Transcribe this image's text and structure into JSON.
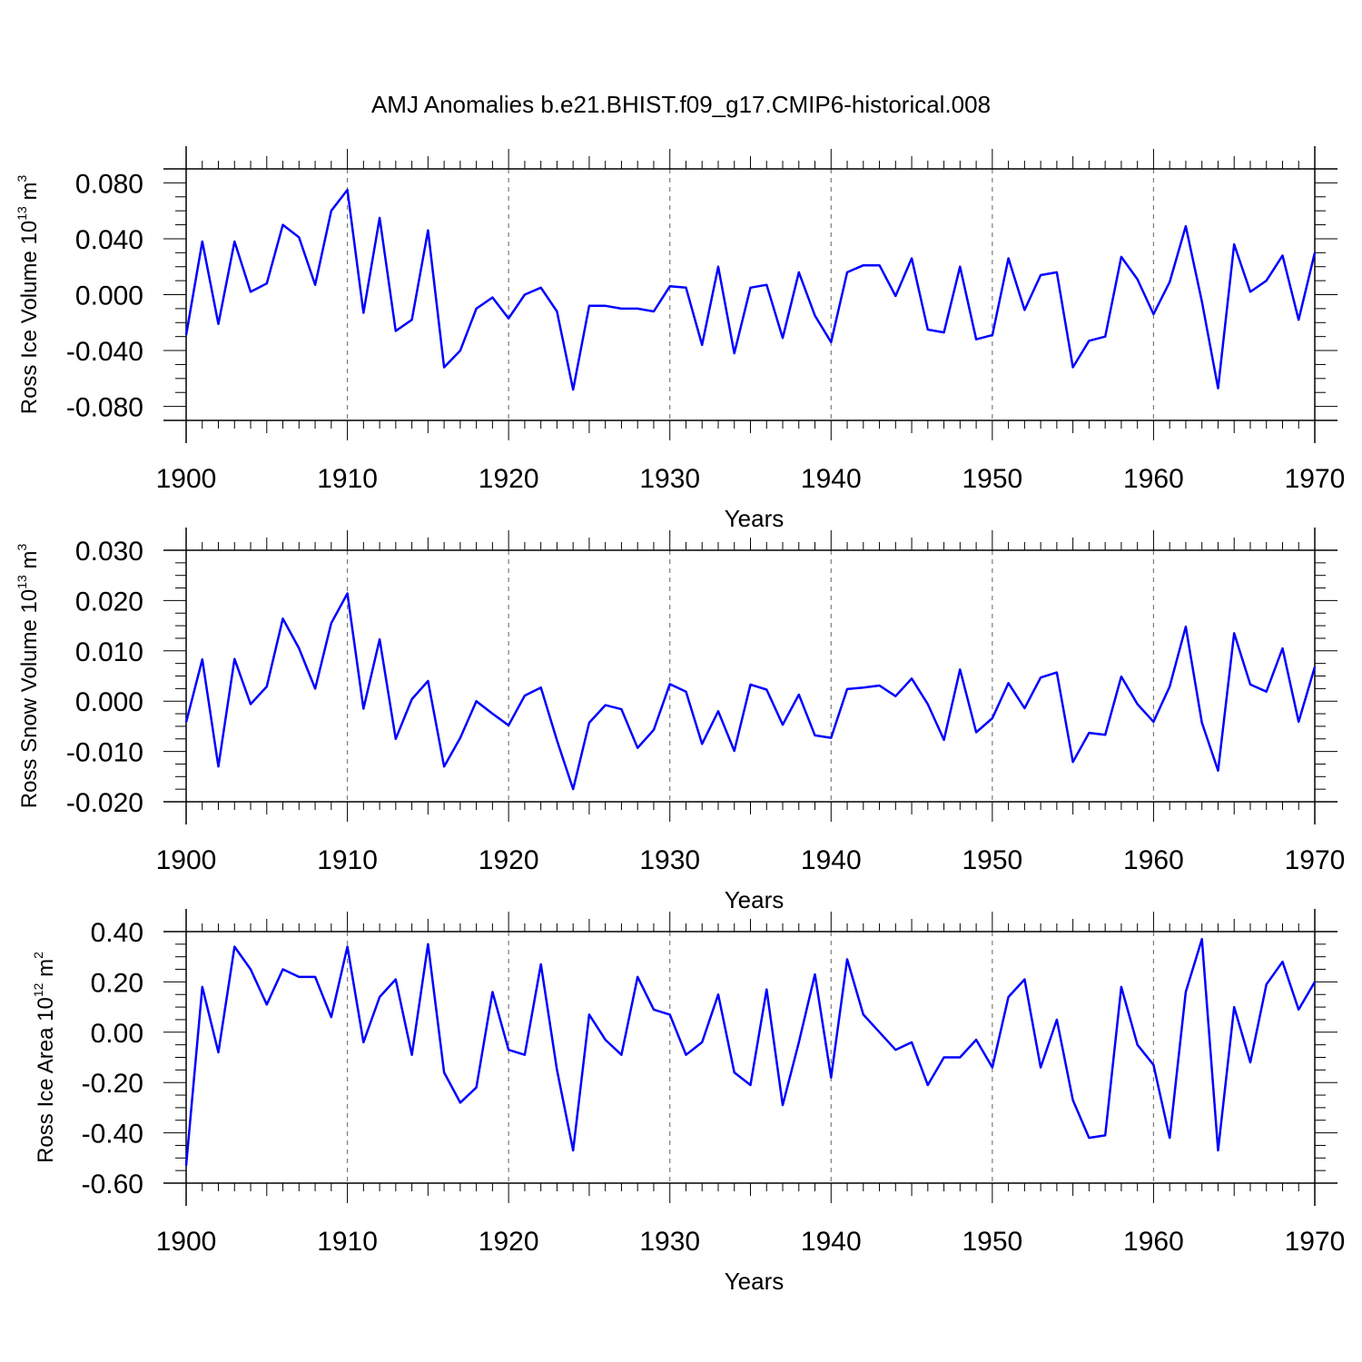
{
  "figure_title": "AMJ Anomalies b.e21.BHIST.f09_g17.CMIP6-historical.008",
  "line_color": "#0000ff",
  "chart_data": [
    {
      "type": "line",
      "ylabel": "Ross Ice Volume 10",
      "ylabel_exp": "13",
      "ylabel_unit": " m",
      "ylabel_unit_exp": "3",
      "xlabel": "Years",
      "xlim": [
        1900,
        1970
      ],
      "ylim": [
        -0.09,
        0.09
      ],
      "xticks": [
        1900,
        1910,
        1920,
        1930,
        1940,
        1950,
        1960,
        1970
      ],
      "xtick_labels": [
        "1900",
        "1910",
        "1920",
        "1930",
        "1940",
        "1950",
        "1960",
        "1970"
      ],
      "yticks": [
        -0.08,
        -0.04,
        0.0,
        0.04,
        0.08
      ],
      "ytick_labels": [
        "-0.080",
        "-0.040",
        "0.000",
        "0.040",
        "0.080"
      ],
      "grid": "vertical dashed at decades",
      "x_start": 1900,
      "values": [
        -0.029,
        0.038,
        -0.021,
        0.038,
        0.002,
        0.008,
        0.05,
        0.041,
        0.007,
        0.06,
        0.075,
        -0.013,
        0.055,
        -0.026,
        -0.018,
        0.046,
        -0.052,
        -0.04,
        -0.01,
        -0.002,
        -0.017,
        0.0,
        0.005,
        -0.012,
        -0.068,
        -0.008,
        -0.008,
        -0.01,
        -0.01,
        -0.012,
        0.006,
        0.005,
        -0.036,
        0.02,
        -0.042,
        0.005,
        0.007,
        -0.031,
        0.016,
        -0.015,
        -0.034,
        0.016,
        0.021,
        0.021,
        -0.001,
        0.026,
        -0.025,
        -0.027,
        0.02,
        -0.032,
        -0.029,
        0.026,
        -0.011,
        0.014,
        0.016,
        -0.052,
        -0.033,
        -0.03,
        0.027,
        0.011,
        -0.014,
        0.009,
        0.049,
        -0.005,
        -0.067,
        0.036,
        0.002,
        0.01,
        0.028,
        -0.018,
        0.03
      ]
    },
    {
      "type": "line",
      "ylabel": "Ross Snow Volume 10",
      "ylabel_exp": "13",
      "ylabel_unit": " m",
      "ylabel_unit_exp": "3",
      "xlabel": "Years",
      "xlim": [
        1900,
        1970
      ],
      "ylim": [
        -0.02,
        0.03
      ],
      "xticks": [
        1900,
        1910,
        1920,
        1930,
        1940,
        1950,
        1960,
        1970
      ],
      "xtick_labels": [
        "1900",
        "1910",
        "1920",
        "1930",
        "1940",
        "1950",
        "1960",
        "1970"
      ],
      "yticks": [
        -0.02,
        -0.01,
        0.0,
        0.01,
        0.02,
        0.03
      ],
      "ytick_labels": [
        "-0.020",
        "-0.010",
        "0.000",
        "0.010",
        "0.020",
        "0.030"
      ],
      "grid": "vertical dashed at decades",
      "x_start": 1900,
      "values": [
        -0.0042,
        0.0083,
        -0.013,
        0.0084,
        -0.0006,
        0.0029,
        0.0164,
        0.0105,
        0.0025,
        0.0155,
        0.0214,
        -0.0015,
        0.0123,
        -0.0075,
        0.0004,
        0.004,
        -0.013,
        -0.0073,
        0.0,
        -0.0025,
        -0.0048,
        0.0011,
        0.0027,
        -0.0078,
        -0.0175,
        -0.0043,
        -0.0008,
        -0.0016,
        -0.0093,
        -0.0057,
        0.0034,
        0.0019,
        -0.0085,
        -0.002,
        -0.0099,
        0.0033,
        0.0023,
        -0.0047,
        0.0013,
        -0.0068,
        -0.0073,
        0.0024,
        0.0027,
        0.0031,
        0.001,
        0.0045,
        -0.0006,
        -0.0077,
        0.0063,
        -0.0062,
        -0.0034,
        0.0036,
        -0.0014,
        0.0047,
        0.0057,
        -0.0121,
        -0.0063,
        -0.0067,
        0.0049,
        -0.0006,
        -0.0041,
        0.0029,
        0.0148,
        -0.0043,
        -0.0138,
        0.0135,
        0.0033,
        0.0019,
        0.0105,
        -0.0041,
        0.0068
      ]
    },
    {
      "type": "line",
      "ylabel": "Ross Ice Area 10",
      "ylabel_exp": "12",
      "ylabel_unit": " m",
      "ylabel_unit_exp": "2",
      "xlabel": "Years",
      "xlim": [
        1900,
        1970
      ],
      "ylim": [
        -0.6,
        0.4
      ],
      "xticks": [
        1900,
        1910,
        1920,
        1930,
        1940,
        1950,
        1960,
        1970
      ],
      "xtick_labels": [
        "1900",
        "1910",
        "1920",
        "1930",
        "1940",
        "1950",
        "1960",
        "1970"
      ],
      "yticks": [
        -0.6,
        -0.4,
        -0.2,
        0.0,
        0.2,
        0.4
      ],
      "ytick_labels": [
        "-0.60",
        "-0.40",
        "-0.20",
        "0.00",
        "0.20",
        "0.40"
      ],
      "grid": "vertical dashed at decades",
      "x_start": 1900,
      "values": [
        -0.53,
        0.18,
        -0.08,
        0.34,
        0.25,
        0.11,
        0.25,
        0.22,
        0.22,
        0.06,
        0.34,
        -0.04,
        0.14,
        0.21,
        -0.09,
        0.35,
        -0.16,
        -0.28,
        -0.22,
        0.16,
        -0.07,
        -0.09,
        0.27,
        -0.15,
        -0.47,
        0.07,
        -0.03,
        -0.09,
        0.22,
        0.09,
        0.07,
        -0.09,
        -0.04,
        0.15,
        -0.16,
        -0.21,
        0.17,
        -0.29,
        -0.04,
        0.23,
        -0.18,
        0.29,
        0.07,
        0.0,
        -0.07,
        -0.04,
        -0.21,
        -0.1,
        -0.1,
        -0.03,
        -0.14,
        0.14,
        0.21,
        -0.14,
        0.05,
        -0.27,
        -0.42,
        -0.41,
        0.18,
        -0.05,
        -0.13,
        -0.42,
        0.16,
        0.37,
        -0.47,
        0.1,
        -0.12,
        0.19,
        0.28,
        0.09,
        0.2
      ]
    }
  ]
}
